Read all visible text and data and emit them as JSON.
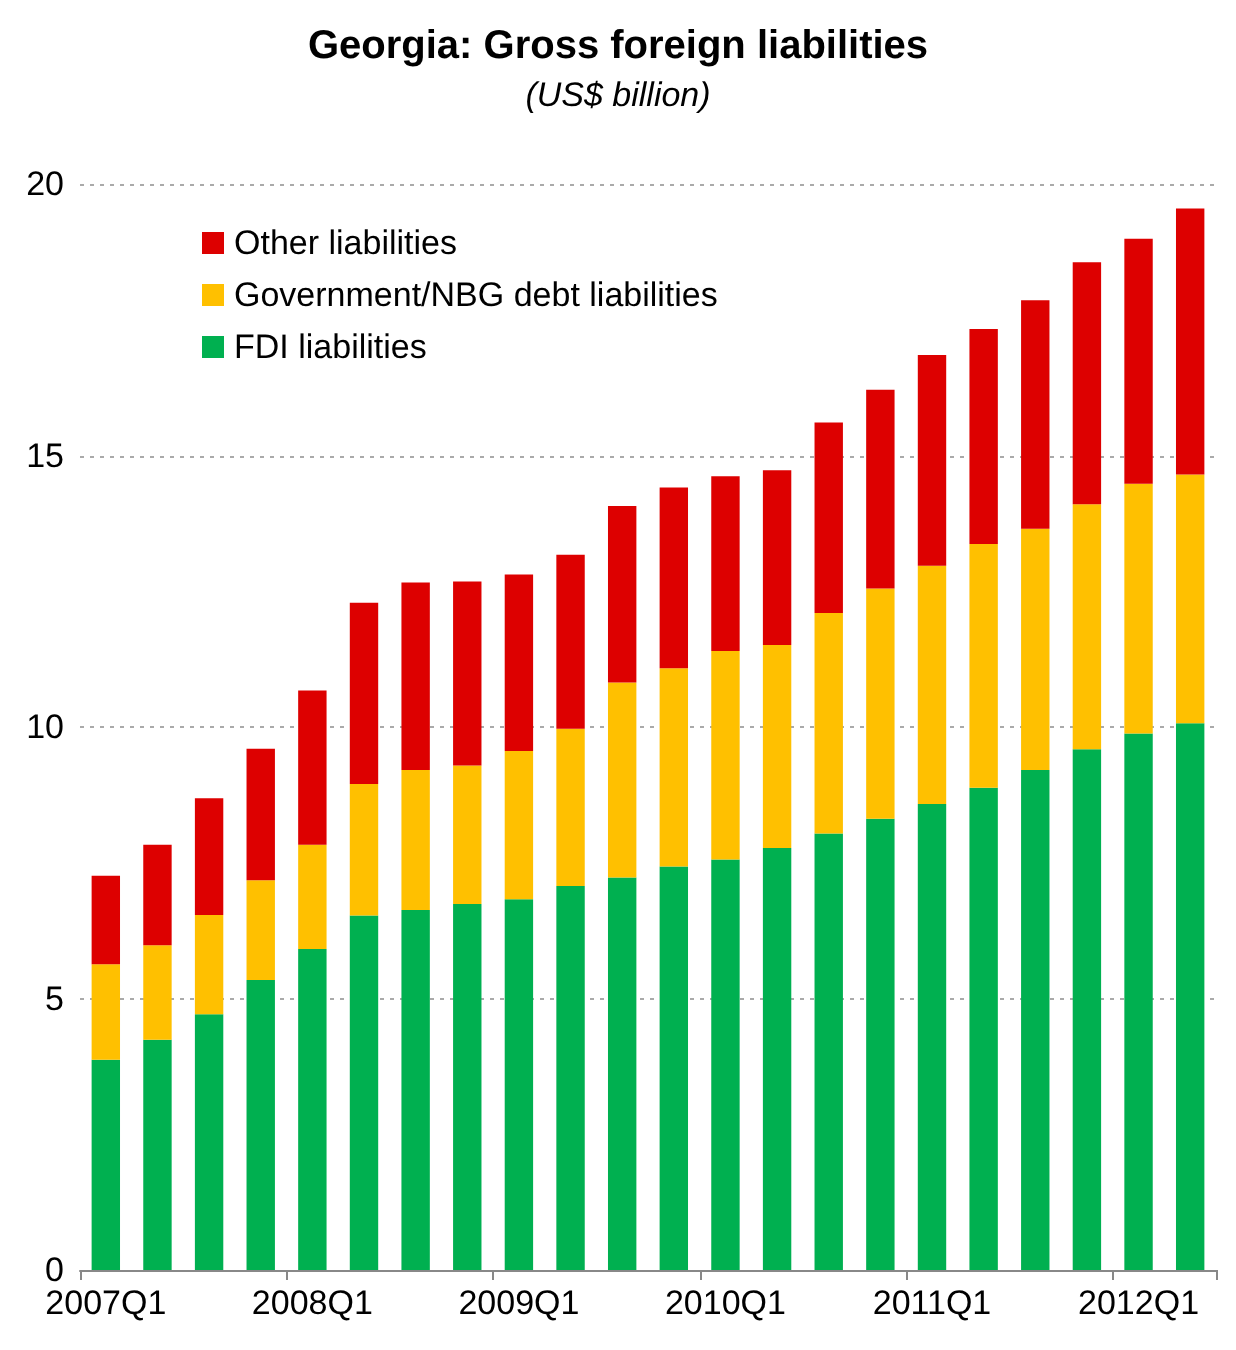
{
  "chart_data": {
    "type": "bar",
    "title": "Georgia: Gross foreign liabilities",
    "subtitle": "(US$ billion)",
    "categories": [
      "2007Q1",
      null,
      null,
      null,
      "2008Q1",
      null,
      null,
      null,
      "2009Q1",
      null,
      null,
      null,
      "2010Q1",
      null,
      null,
      null,
      "2011Q1",
      null,
      null,
      null,
      "2012Q1",
      null
    ],
    "stacked": true,
    "series": [
      {
        "name": "FDI liabilities",
        "color": "#00b050",
        "values": [
          3.87,
          4.24,
          4.71,
          5.34,
          5.91,
          6.53,
          6.63,
          6.74,
          6.83,
          7.07,
          7.23,
          7.43,
          7.56,
          7.77,
          8.04,
          8.31,
          8.58,
          8.88,
          9.21,
          9.59,
          9.88,
          10.07
        ]
      },
      {
        "name": "Government/NBG debt liabilities",
        "color": "#ffc000",
        "values": [
          1.76,
          1.74,
          1.83,
          1.84,
          1.92,
          2.42,
          2.58,
          2.55,
          2.73,
          2.9,
          3.59,
          3.65,
          3.84,
          3.74,
          4.06,
          4.24,
          4.39,
          4.49,
          4.44,
          4.51,
          4.6,
          4.58
        ]
      },
      {
        "name": "Other liabilities",
        "color": "#dd0000",
        "values": [
          1.63,
          1.85,
          2.15,
          2.42,
          2.84,
          3.34,
          3.45,
          3.39,
          3.25,
          3.2,
          3.25,
          3.33,
          3.22,
          3.22,
          3.51,
          3.66,
          3.88,
          3.96,
          4.21,
          4.46,
          4.51,
          4.9
        ]
      }
    ],
    "ylim": [
      0,
      20
    ],
    "yticks": [
      0,
      5,
      10,
      15,
      20
    ],
    "grid": "y",
    "legend": "top left"
  }
}
